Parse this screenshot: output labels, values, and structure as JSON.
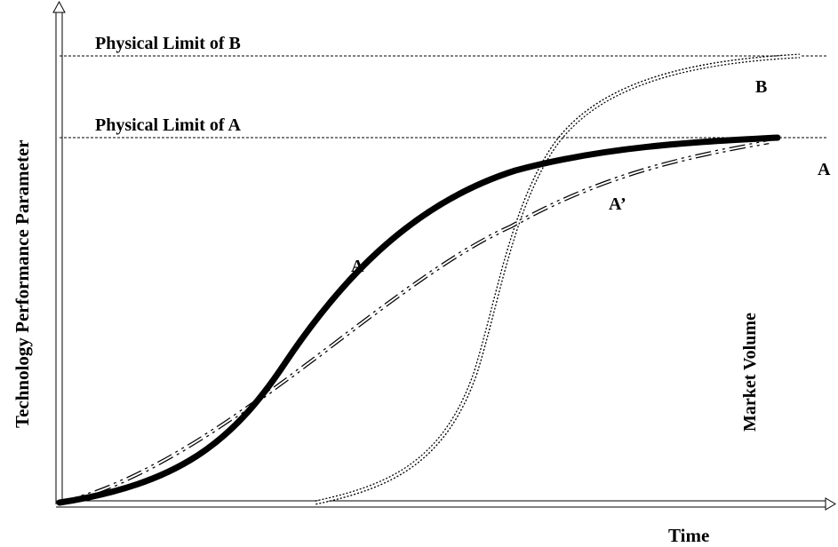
{
  "labels": {
    "limit_b": "Physical Limit of B",
    "limit_a": "Physical Limit of A",
    "curve_b": "B",
    "curve_a_mid": "A",
    "curve_a_right": "A",
    "curve_a_prime": "A’",
    "market_volume": "Market Volume",
    "y_axis": "Technology Performance Parameter",
    "x_axis": "Time"
  },
  "colors": {
    "line": "#000000",
    "background": "#ffffff"
  }
}
